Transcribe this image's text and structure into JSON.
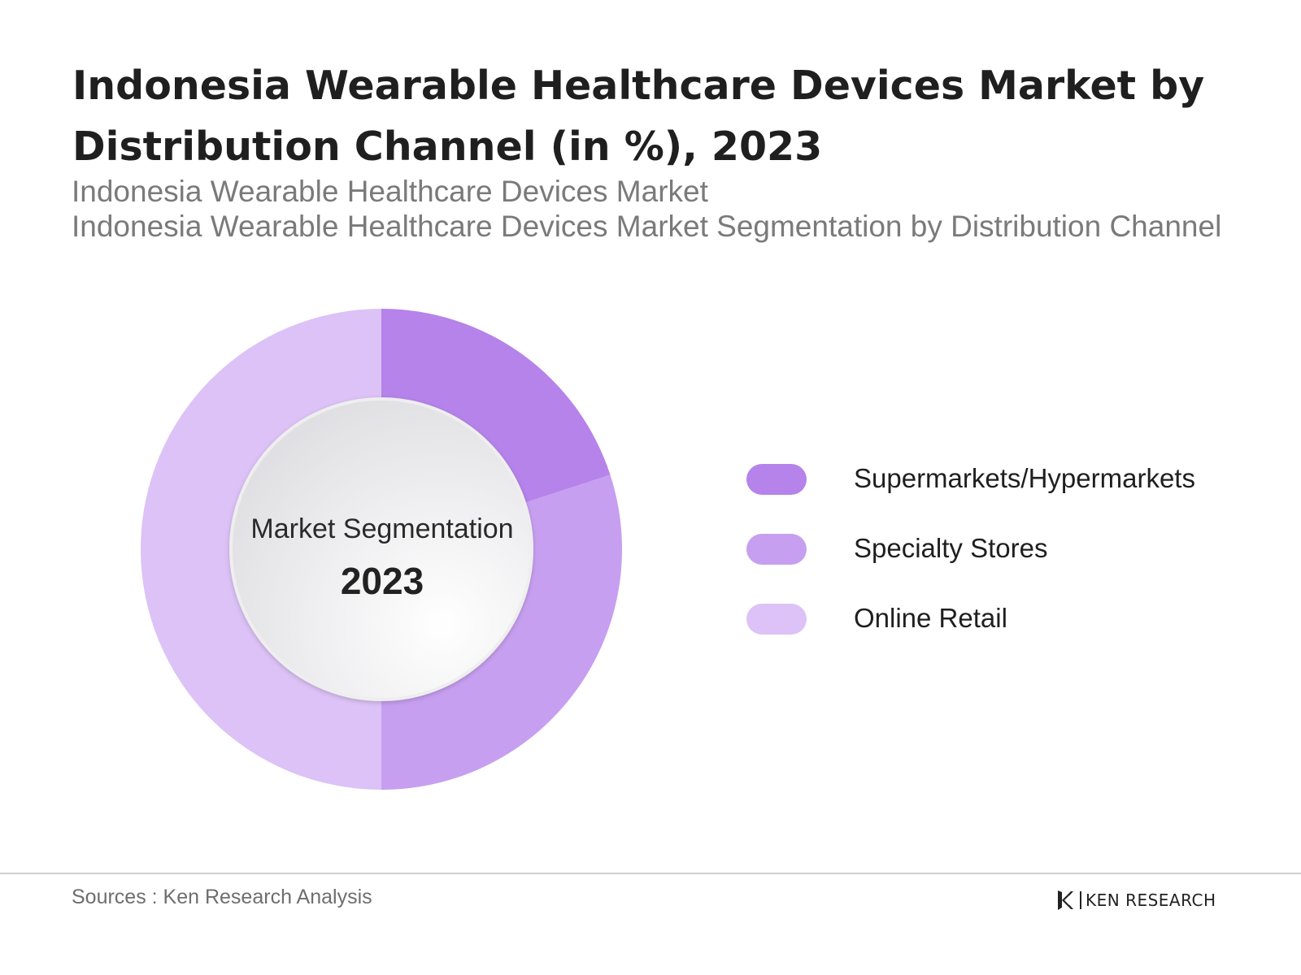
{
  "header": {
    "title": "Indonesia Wearable Healthcare Devices Market by Distribution Channel (in %), 2023",
    "subtitle_line1": "Indonesia Wearable Healthcare Devices Market",
    "subtitle_line2": "Indonesia Wearable Healthcare Devices Market Segmentation by Distribution Channel"
  },
  "chart_data": {
    "type": "pie",
    "donut": true,
    "center_label": "Market Segmentation",
    "center_year": "2023",
    "legend_position": "right",
    "categories": [
      "Supermarkets/Hypermarkets",
      "Specialty Stores",
      "Online Retail"
    ],
    "values": [
      20,
      30,
      50
    ],
    "colors": [
      "#b583ea",
      "#c79ff0",
      "#dcc2f6"
    ]
  },
  "footer": {
    "source": "Sources : Ken Research Analysis",
    "brand": "KEN RESEARCH"
  }
}
